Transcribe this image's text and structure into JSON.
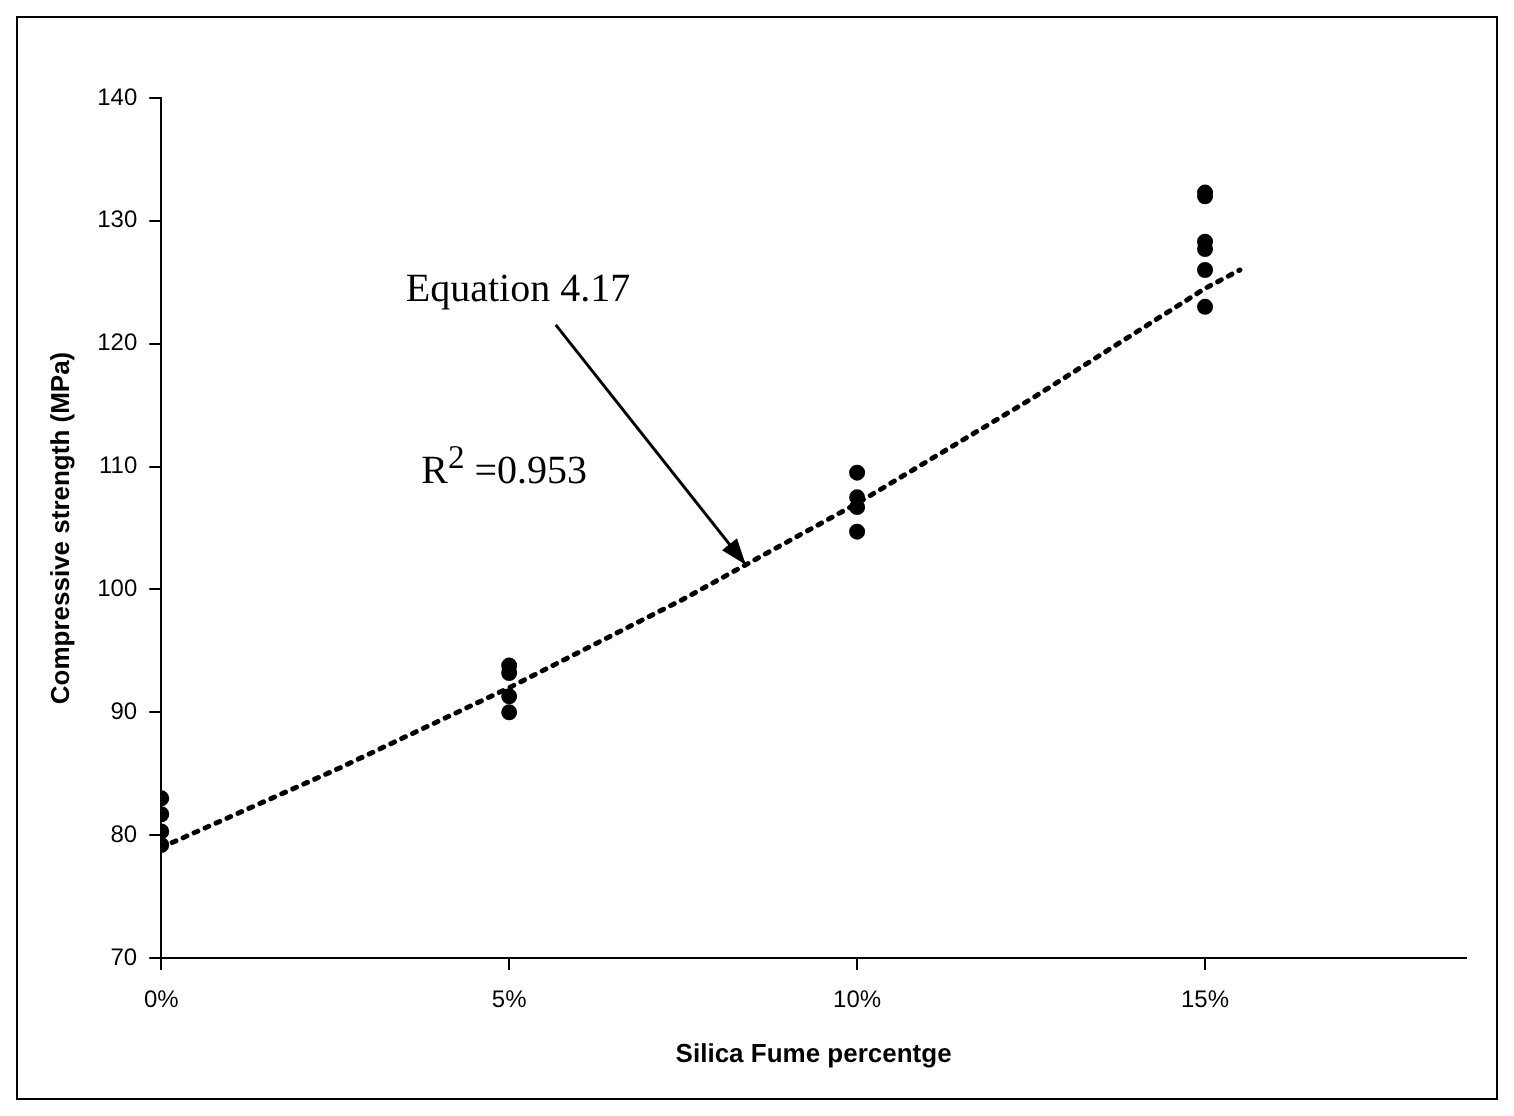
{
  "chart_data": {
    "type": "scatter",
    "xlabel": "Silica Fume percentge",
    "ylabel": "Compressive strength (MPa)",
    "xlim": [
      0,
      18.75
    ],
    "xticks": [
      {
        "value": 0,
        "label": "0%"
      },
      {
        "value": 5,
        "label": "5%"
      },
      {
        "value": 10,
        "label": "10%"
      },
      {
        "value": 15,
        "label": "15%"
      }
    ],
    "ylim": [
      70,
      140
    ],
    "yticks": [
      70,
      80,
      90,
      100,
      110,
      120,
      130,
      140
    ],
    "grid": false,
    "legend": false,
    "marker": "circle",
    "series": [
      {
        "color": "#000000",
        "x": [
          0,
          0,
          0,
          0,
          5,
          5,
          5,
          5,
          10,
          10,
          10,
          10,
          15,
          15,
          15,
          15,
          15,
          15
        ],
        "values": [
          83,
          81.7,
          80.3,
          79.2,
          93.8,
          93.2,
          91.3,
          90,
          109.5,
          107.5,
          106.7,
          104.7,
          132.3,
          132,
          128.3,
          127.7,
          126,
          123
        ]
      },
      {
        "type": "line",
        "color": "#000000",
        "line_style": "dotted",
        "marker": "none",
        "x": [
          0,
          2.5,
          5,
          7.5,
          10,
          12.5,
          15,
          15.5
        ],
        "values": [
          79,
          85.3,
          92,
          99.2,
          107,
          115.5,
          124.5,
          126
        ]
      }
    ],
    "annotations": [
      {
        "text": "Equation 4.17",
        "x": 8.4,
        "y": 102
      },
      "R$^{2}$ =0.953"
    ]
  }
}
